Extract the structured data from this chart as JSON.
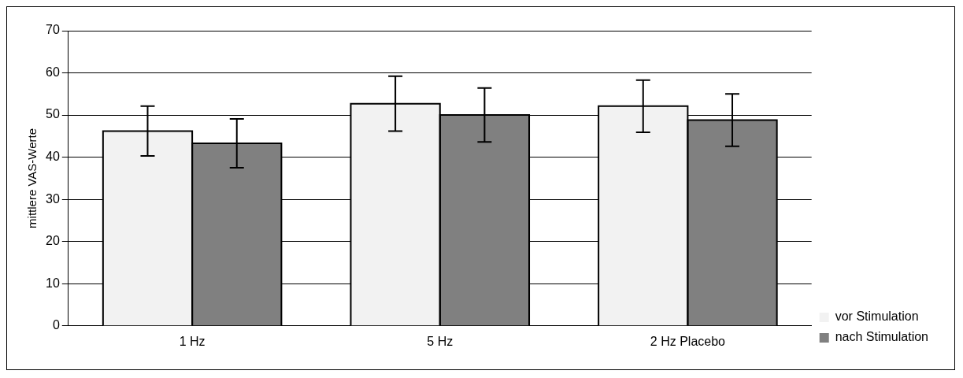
{
  "chart_data": {
    "type": "bar",
    "ylabel": "mittlere VAS-Werte",
    "categories": [
      "1 Hz",
      "5 Hz",
      "2 Hz Placebo"
    ],
    "series": [
      {
        "name": "vor Stimulation",
        "color": "#f2f2f2",
        "values": [
          46.2,
          52.7,
          52.1
        ],
        "errors": [
          5.9,
          6.5,
          6.2
        ]
      },
      {
        "name": "nach Stimulation",
        "color": "#808080",
        "values": [
          43.3,
          50,
          48.8
        ],
        "errors": [
          5.8,
          6.4,
          6.2
        ]
      }
    ],
    "ylim": [
      0,
      70
    ],
    "yticks": [
      0,
      10,
      20,
      30,
      40,
      50,
      60,
      70
    ],
    "grid": "y",
    "legend": "right"
  }
}
